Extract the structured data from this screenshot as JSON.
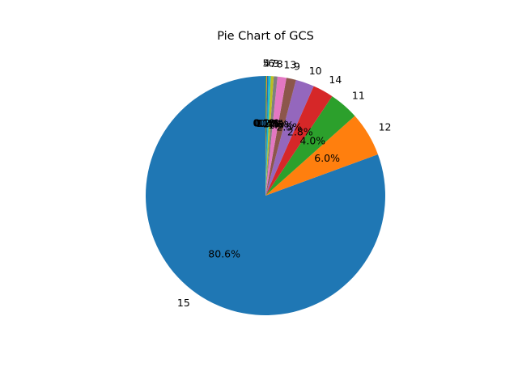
{
  "chart_data": {
    "type": "pie",
    "title": "Pie Chart of GCS",
    "start_angle_deg": 90,
    "direction": "counterclockwise",
    "slices": [
      {
        "label": "15",
        "percent": 80.6,
        "pct_text": "80.6%",
        "color": "#1f77b4"
      },
      {
        "label": "12",
        "percent": 6.0,
        "pct_text": "6.0%",
        "color": "#ff7f0e"
      },
      {
        "label": "11",
        "percent": 4.0,
        "pct_text": "4.0%",
        "color": "#2ca02c"
      },
      {
        "label": "14",
        "percent": 2.8,
        "pct_text": "2.8%",
        "color": "#d62728"
      },
      {
        "label": "10",
        "percent": 2.5,
        "pct_text": "2.5%",
        "color": "#9467bd"
      },
      {
        "label": "9",
        "percent": 1.3,
        "pct_text": "1.3%",
        "color": "#8c564b"
      },
      {
        "label": "13",
        "percent": 1.2,
        "pct_text": "1.2%",
        "color": "#e377c2"
      },
      {
        "label": "8",
        "percent": 0.5,
        "pct_text": "0.5%",
        "color": "#7f7f7f"
      },
      {
        "label": "3",
        "percent": 0.4,
        "pct_text": "0.4%",
        "color": "#bcbd22"
      },
      {
        "label": "7",
        "percent": 0.3,
        "pct_text": "0.3%",
        "color": "#17becf"
      },
      {
        "label": "6",
        "percent": 0.2,
        "pct_text": "0.2%",
        "color": "#1f77b4"
      },
      {
        "label": "4",
        "percent": 0.1,
        "pct_text": "0.1%",
        "color": "#ff7f0e"
      },
      {
        "label": "5",
        "percent": 0.1,
        "pct_text": "0.1%",
        "color": "#2ca02c"
      }
    ]
  }
}
